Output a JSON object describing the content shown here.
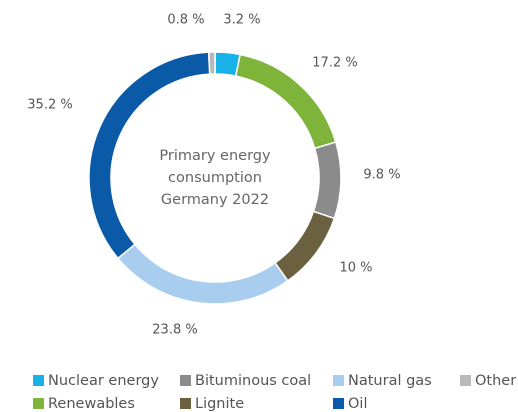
{
  "chart_data": {
    "type": "donut",
    "title": [
      "Primary energy",
      "consumption",
      "Germany 2022"
    ],
    "categories": [
      "Nuclear energy",
      "Renewables",
      "Bituminous coal",
      "Lignite",
      "Natural gas",
      "Oil",
      "Other"
    ],
    "values": [
      3.2,
      17.2,
      9.8,
      10,
      23.8,
      35.2,
      0.8
    ],
    "value_labels": [
      "3.2 %",
      "17.2 %",
      "9.8 %",
      "10 %",
      "23.8 %",
      "35.2 %",
      "0.8 %"
    ],
    "colors": [
      "#1ab0e8",
      "#7db439",
      "#8b8b8b",
      "#6b6040",
      "#a8cdef",
      "#0a5aa8",
      "#b9b9b9"
    ],
    "legend": "bottom"
  }
}
